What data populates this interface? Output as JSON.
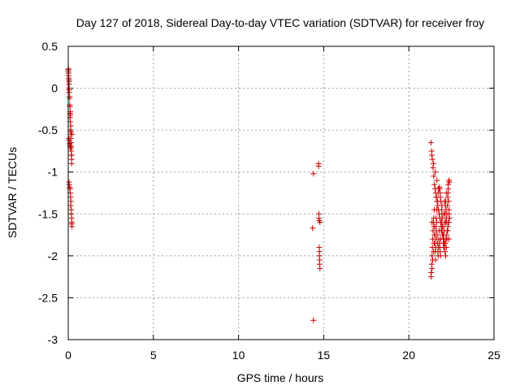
{
  "chart_data": {
    "type": "scatter",
    "title": "Day 127 of 2018, Sidereal Day-to-day VTEC variation (SDTVAR) for receiver froy",
    "xlabel": "GPS time / hours",
    "ylabel": "SDTVAR / TECUs",
    "xlim": [
      0,
      25
    ],
    "ylim": [
      -3,
      0.5
    ],
    "xticks": [
      0,
      5,
      10,
      15,
      20,
      25
    ],
    "xtick_labels": [
      "0",
      "5",
      "10",
      "15",
      "20",
      "25"
    ],
    "yticks": [
      -3,
      -2.5,
      -2,
      -1.5,
      -1,
      -0.5,
      0,
      0.5
    ],
    "ytick_labels": [
      "-3",
      "-2.5",
      "-2",
      "-1.5",
      "-1",
      "-0.5",
      "0",
      "0.5"
    ],
    "grid": true,
    "marker": "plus",
    "color": "#cc0000",
    "series": [
      {
        "x": [
          0.0,
          0.0,
          0.02,
          0.02,
          0.04,
          0.05,
          0.06,
          0.06,
          0.08,
          0.09,
          0.1,
          0.1,
          0.12,
          0.13,
          0.14,
          0.15,
          0.16,
          0.18,
          0.18,
          0.2,
          0.02,
          0.03,
          0.05,
          0.06,
          0.08,
          0.1,
          0.12,
          0.13,
          0.15,
          0.16,
          0.04,
          0.06,
          0.08,
          0.1,
          0.12,
          0.14,
          0.18,
          0.2,
          0.2,
          0.22,
          0.04,
          0.06,
          0.08,
          0.1,
          0.12,
          0.14,
          0.16,
          0.18,
          0.2,
          0.22,
          0.1,
          0.14,
          0.18,
          0.2,
          0.22,
          14.35,
          14.4,
          14.4,
          14.7,
          14.7,
          14.72,
          14.72,
          14.74,
          14.74,
          14.75,
          14.75,
          14.76,
          14.76,
          14.78,
          14.78,
          21.3,
          21.32,
          21.34,
          21.36,
          21.38,
          21.4,
          21.42,
          21.44,
          21.46,
          21.48,
          21.5,
          21.52,
          21.54,
          21.56,
          21.58,
          21.6,
          21.62,
          21.64,
          21.66,
          21.68,
          21.7,
          21.72,
          21.74,
          21.76,
          21.78,
          21.8,
          21.82,
          21.84,
          21.86,
          21.88,
          21.9,
          21.92,
          21.94,
          21.96,
          21.98,
          22.0,
          22.02,
          22.04,
          22.06,
          22.08,
          22.1,
          22.12,
          22.14,
          22.16,
          22.18,
          22.2,
          22.22,
          22.24,
          22.26,
          22.28,
          22.3,
          22.32,
          22.34,
          22.36,
          22.38,
          21.3,
          21.34,
          21.38,
          21.42,
          21.46,
          21.5,
          21.54,
          21.58,
          21.62,
          21.66,
          21.7,
          21.74,
          21.78,
          21.82,
          21.86,
          21.9,
          21.94,
          21.98,
          22.02,
          22.06,
          22.1,
          22.14,
          22.18,
          22.22,
          22.26,
          22.3,
          22.34,
          22.38,
          21.32,
          21.36,
          21.4,
          21.44,
          21.48,
          21.52,
          21.56,
          21.6,
          21.64,
          21.68,
          21.72,
          21.76,
          21.8,
          21.84,
          21.88,
          21.92,
          21.96,
          22.0,
          22.04,
          22.08,
          22.12,
          22.16,
          22.2,
          22.24,
          22.28,
          22.32,
          22.36,
          21.35,
          21.45,
          21.55,
          21.65,
          21.75,
          21.85,
          21.95,
          22.05,
          22.15,
          22.25,
          22.35,
          21.36,
          21.5,
          21.62,
          21.8,
          22.0,
          22.1,
          22.2,
          22.3,
          22.35,
          22.38
        ],
        "y": [
          0.2,
          0.22,
          0.23,
          0.15,
          0.1,
          0.05,
          0.0,
          -0.05,
          -0.1,
          -0.2,
          -0.3,
          -0.35,
          -0.4,
          -0.5,
          -0.55,
          -0.6,
          -0.65,
          -0.7,
          -0.8,
          -0.9,
          0.18,
          0.12,
          0.08,
          -0.02,
          -0.12,
          -0.22,
          -0.28,
          -0.32,
          -0.45,
          -0.52,
          -0.6,
          -0.62,
          -0.66,
          -0.68,
          -0.7,
          -0.72,
          -0.75,
          -0.8,
          -0.85,
          -0.55,
          -1.12,
          -1.15,
          -1.18,
          -1.2,
          -1.25,
          -1.3,
          -1.35,
          -1.45,
          -1.55,
          -1.6,
          -1.2,
          -1.4,
          -1.5,
          -1.62,
          -1.65,
          -1.67,
          -1.02,
          -2.77,
          -0.9,
          -0.93,
          -1.5,
          -1.55,
          -1.58,
          -1.9,
          -1.95,
          -2.0,
          -2.05,
          -2.1,
          -2.15,
          -1.6,
          -2.25,
          -2.2,
          -2.1,
          -2.0,
          -1.9,
          -1.8,
          -1.7,
          -1.6,
          -1.55,
          -1.65,
          -1.75,
          -1.85,
          -1.95,
          -2.05,
          -1.9,
          -1.8,
          -1.7,
          -1.6,
          -1.75,
          -1.85,
          -1.95,
          -2.0,
          -1.9,
          -1.8,
          -1.7,
          -1.85,
          -1.9,
          -1.95,
          -2.0,
          -1.8,
          -1.7,
          -1.6,
          -1.5,
          -1.55,
          -1.65,
          -1.75,
          -1.85,
          -1.9,
          -1.8,
          -1.7,
          -1.6,
          -1.5,
          -1.4,
          -1.35,
          -1.45,
          -1.55,
          -1.6,
          -1.5,
          -1.4,
          -1.3,
          -1.25,
          -1.2,
          -1.35,
          -1.45,
          -1.55,
          -0.65,
          -0.75,
          -0.85,
          -0.95,
          -1.05,
          -1.15,
          -1.2,
          -1.25,
          -1.3,
          -1.35,
          -1.4,
          -1.45,
          -1.5,
          -1.55,
          -1.6,
          -1.65,
          -1.7,
          -1.75,
          -1.8,
          -1.85,
          -1.9,
          -1.85,
          -1.8,
          -1.75,
          -1.7,
          -1.65,
          -1.6,
          -1.55,
          -2.2,
          -2.15,
          -2.05,
          -1.95,
          -1.85,
          -1.75,
          -1.65,
          -1.55,
          -1.45,
          -1.35,
          -1.25,
          -1.2,
          -1.18,
          -1.25,
          -1.35,
          -1.45,
          -1.55,
          -1.65,
          -1.75,
          -1.85,
          -1.95,
          -2.0,
          -1.9,
          -1.8,
          -1.7,
          -1.6,
          -1.5,
          -0.8,
          -0.9,
          -1.0,
          -1.1,
          -1.2,
          -1.3,
          -1.4,
          -1.5,
          -1.6,
          -1.7,
          -1.8,
          -1.6,
          -1.45,
          -1.3,
          -1.2,
          -1.65,
          -1.35,
          -1.25,
          -1.15,
          -1.1,
          -1.12
        ]
      }
    ]
  }
}
